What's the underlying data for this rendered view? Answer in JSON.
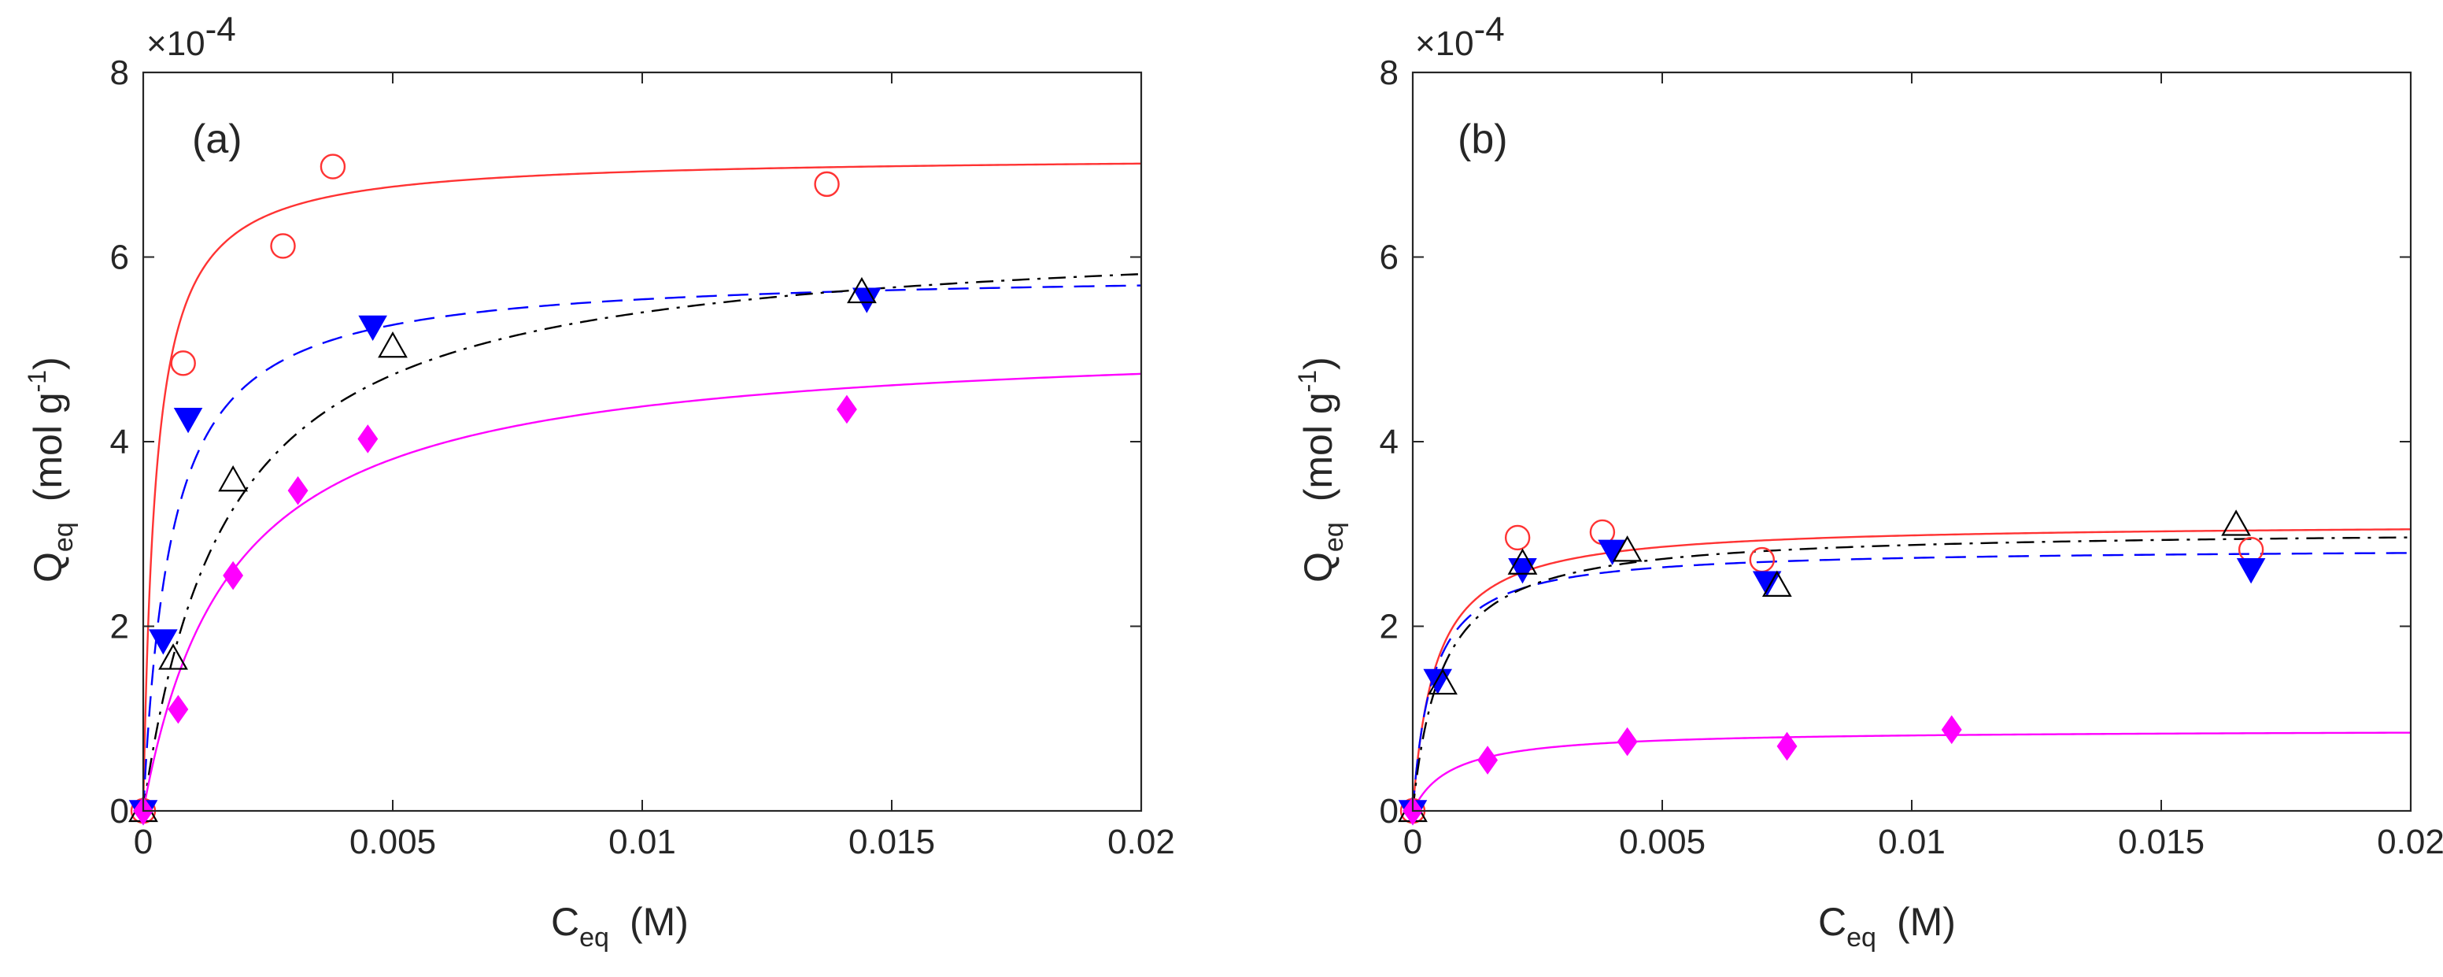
{
  "chart_data": [
    {
      "type": "scatter",
      "panel_label": "(a)",
      "xlabel": "C",
      "xlabel_sub": "eq",
      "xlabel_unit": "(M)",
      "ylabel": "Q",
      "ylabel_sub": "eq",
      "ylabel_unit_prefix": "(mol g",
      "ylabel_unit_sup": "-1",
      "ylabel_unit_suffix": ")",
      "y_exponent_prefix": "×10",
      "y_exponent_power": "-4",
      "xlim": [
        0,
        0.02
      ],
      "ylim": [
        0,
        8
      ],
      "xticks": [
        0,
        0.005,
        0.01,
        0.015,
        0.02
      ],
      "xtick_labels": [
        "0",
        "0.005",
        "0.01",
        "0.015",
        "0.02"
      ],
      "yticks": [
        0,
        2,
        4,
        6,
        8
      ],
      "ytick_labels": [
        "0",
        "2",
        "4",
        "6",
        "8"
      ],
      "grid": false,
      "series": [
        {
          "name": "circle",
          "marker": "circle",
          "color": "#FF3333",
          "line_style": "solid",
          "points": [
            [
              0,
              0
            ],
            [
              0.0008,
              4.85
            ],
            [
              0.0028,
              6.12
            ],
            [
              0.0038,
              6.98
            ],
            [
              0.0137,
              6.79
            ]
          ],
          "fit": {
            "qmax": 7.1,
            "k": 4000
          }
        },
        {
          "name": "filled-triangle-down",
          "marker": "triangle-down",
          "color": "#0000FF",
          "line_style": "dashed",
          "points": [
            [
              0,
              0
            ],
            [
              0.0004,
              1.85
            ],
            [
              0.0009,
              4.25
            ],
            [
              0.0046,
              5.25
            ],
            [
              0.0145,
              5.55
            ]
          ],
          "fit": {
            "qmax": 5.85,
            "k": 1800
          }
        },
        {
          "name": "open-triangle-up",
          "marker": "triangle-up",
          "color": "#000000",
          "line_style": "dashdot",
          "points": [
            [
              0,
              0
            ],
            [
              0.0006,
              1.65
            ],
            [
              0.0018,
              3.58
            ],
            [
              0.005,
              5.03
            ],
            [
              0.0144,
              5.62
            ]
          ],
          "fit": {
            "qmax": 6.3,
            "k": 600
          }
        },
        {
          "name": "diamond",
          "marker": "diamond",
          "color": "#FF00FF",
          "line_style": "solid",
          "points": [
            [
              0,
              0
            ],
            [
              0.0007,
              1.1
            ],
            [
              0.0018,
              2.55
            ],
            [
              0.0031,
              3.47
            ],
            [
              0.0045,
              4.03
            ],
            [
              0.0141,
              4.35
            ]
          ],
          "fit": {
            "qmax": 5.15,
            "k": 570
          }
        }
      ]
    },
    {
      "type": "scatter",
      "panel_label": "(b)",
      "xlabel": "C",
      "xlabel_sub": "eq",
      "xlabel_unit": "(M)",
      "ylabel": "Q",
      "ylabel_sub": "eq",
      "ylabel_unit_prefix": "(mol g",
      "ylabel_unit_sup": "-1",
      "ylabel_unit_suffix": ")",
      "y_exponent_prefix": "×10",
      "y_exponent_power": "-4",
      "xlim": [
        0,
        0.02
      ],
      "ylim": [
        0,
        8
      ],
      "xticks": [
        0,
        0.005,
        0.01,
        0.015,
        0.02
      ],
      "xtick_labels": [
        "0",
        "0.005",
        "0.01",
        "0.015",
        "0.02"
      ],
      "yticks": [
        0,
        2,
        4,
        6,
        8
      ],
      "ytick_labels": [
        "0",
        "2",
        "4",
        "6",
        "8"
      ],
      "grid": false,
      "series": [
        {
          "name": "circle",
          "marker": "circle",
          "color": "#FF3333",
          "line_style": "solid",
          "points": [
            [
              0,
              0
            ],
            [
              0.0021,
              2.96
            ],
            [
              0.0038,
              3.02
            ],
            [
              0.007,
              2.72
            ],
            [
              0.0168,
              2.83
            ]
          ],
          "fit": {
            "qmax": 3.12,
            "k": 2200
          }
        },
        {
          "name": "filled-triangle-down",
          "marker": "triangle-down",
          "color": "#0000FF",
          "line_style": "dashed",
          "points": [
            [
              0,
              0
            ],
            [
              0.0005,
              1.42
            ],
            [
              0.0022,
              2.62
            ],
            [
              0.004,
              2.82
            ],
            [
              0.0071,
              2.48
            ],
            [
              0.0168,
              2.62
            ]
          ],
          "fit": {
            "qmax": 2.85,
            "k": 2500
          }
        },
        {
          "name": "open-triangle-up",
          "marker": "triangle-up",
          "color": "#000000",
          "line_style": "dashdot",
          "points": [
            [
              0,
              0
            ],
            [
              0.0006,
              1.38
            ],
            [
              0.0022,
              2.68
            ],
            [
              0.0043,
              2.82
            ],
            [
              0.0073,
              2.44
            ],
            [
              0.0165,
              3.1
            ]
          ],
          "fit": {
            "qmax": 3.05,
            "k": 1700
          }
        },
        {
          "name": "diamond",
          "marker": "diamond",
          "color": "#FF00FF",
          "line_style": "solid",
          "points": [
            [
              0,
              0
            ],
            [
              0.0015,
              0.55
            ],
            [
              0.0043,
              0.75
            ],
            [
              0.0075,
              0.7
            ],
            [
              0.0108,
              0.88
            ]
          ],
          "fit": {
            "qmax": 0.88,
            "k": 1300
          }
        }
      ]
    }
  ]
}
